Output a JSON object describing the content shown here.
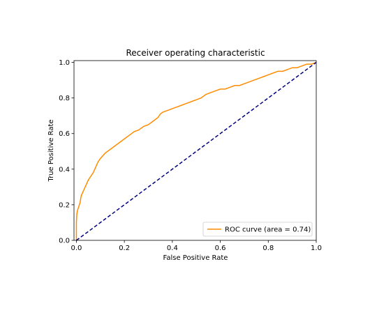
{
  "chart_data": {
    "type": "line",
    "title": "Receiver operating characteristic",
    "xlabel": "False Positive Rate",
    "ylabel": "True Positive Rate",
    "xlim": [
      -0.01,
      1.0
    ],
    "ylim": [
      0.0,
      1.01
    ],
    "grid": false,
    "legend": {
      "placement": "lower-right"
    },
    "x_ticks": [
      "0.0",
      "0.2",
      "0.4",
      "0.6",
      "0.8",
      "1.0"
    ],
    "y_ticks": [
      "0.0",
      "0.2",
      "0.4",
      "0.6",
      "0.8",
      "1.0"
    ],
    "x_tick_values": [
      0.0,
      0.2,
      0.4,
      0.6,
      0.8,
      1.0
    ],
    "y_tick_values": [
      0.0,
      0.2,
      0.4,
      0.6,
      0.8,
      1.0
    ],
    "series": [
      {
        "name": "ROC curve (area = 0.74)",
        "color": "#ff8c00",
        "style": "solid",
        "x": [
          0.0,
          0.0,
          0.002,
          0.005,
          0.01,
          0.015,
          0.02,
          0.03,
          0.04,
          0.05,
          0.06,
          0.07,
          0.08,
          0.09,
          0.1,
          0.12,
          0.14,
          0.16,
          0.18,
          0.2,
          0.22,
          0.24,
          0.26,
          0.28,
          0.3,
          0.32,
          0.34,
          0.35,
          0.36,
          0.38,
          0.4,
          0.42,
          0.44,
          0.46,
          0.48,
          0.5,
          0.52,
          0.54,
          0.56,
          0.58,
          0.6,
          0.62,
          0.64,
          0.66,
          0.68,
          0.7,
          0.72,
          0.74,
          0.76,
          0.78,
          0.8,
          0.82,
          0.84,
          0.86,
          0.88,
          0.9,
          0.92,
          0.94,
          0.96,
          0.98,
          1.0
        ],
        "y": [
          0.0,
          0.1,
          0.15,
          0.17,
          0.19,
          0.21,
          0.25,
          0.28,
          0.31,
          0.34,
          0.36,
          0.38,
          0.41,
          0.44,
          0.46,
          0.49,
          0.51,
          0.53,
          0.55,
          0.57,
          0.59,
          0.61,
          0.62,
          0.64,
          0.65,
          0.67,
          0.69,
          0.71,
          0.72,
          0.73,
          0.74,
          0.75,
          0.76,
          0.77,
          0.78,
          0.79,
          0.8,
          0.82,
          0.83,
          0.84,
          0.85,
          0.85,
          0.86,
          0.87,
          0.87,
          0.88,
          0.89,
          0.9,
          0.91,
          0.92,
          0.93,
          0.94,
          0.95,
          0.95,
          0.96,
          0.97,
          0.97,
          0.98,
          0.99,
          0.99,
          1.0
        ]
      },
      {
        "name": "",
        "color": "#000080",
        "style": "dashed",
        "x": [
          0.0,
          1.0
        ],
        "y": [
          0.0,
          1.0
        ]
      }
    ]
  }
}
